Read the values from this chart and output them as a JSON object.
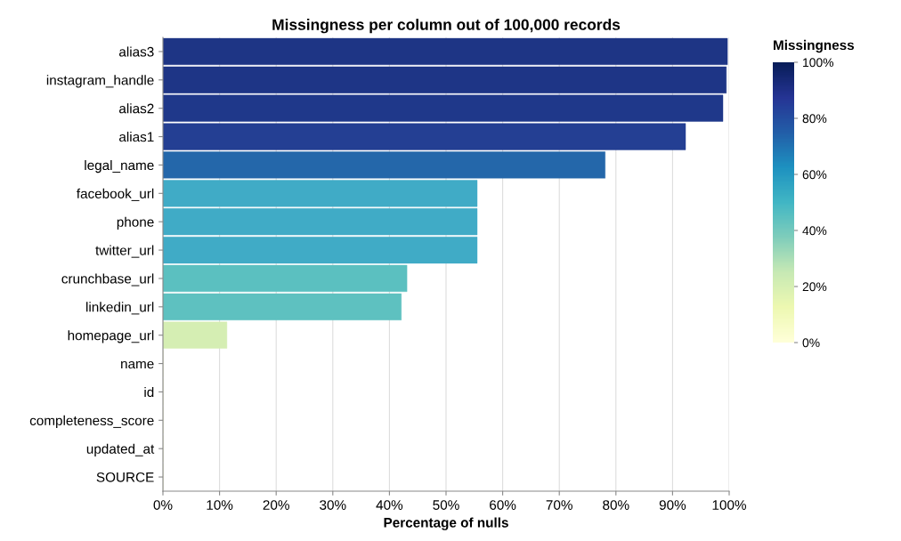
{
  "chart_data": {
    "type": "bar",
    "orientation": "horizontal",
    "title": "Missingness per column out of 100,000 records",
    "xlabel": "Percentage of nulls",
    "clabel": "Missingness",
    "categories": [
      "alias3",
      "instagram_handle",
      "alias2",
      "alias1",
      "legal_name",
      "facebook_url",
      "phone",
      "twitter_url",
      "crunchbase_url",
      "linkedin_url",
      "homepage_url",
      "name",
      "id",
      "completeness_score",
      "updated_at",
      "SOURCE"
    ],
    "values": [
      99.7,
      99.5,
      98.9,
      92.3,
      78.1,
      55.5,
      55.5,
      55.5,
      43.1,
      42.1,
      11.3,
      0,
      0,
      0,
      0,
      0
    ],
    "colors": [
      "#1e3585",
      "#1e3586",
      "#1f388a",
      "#243f93",
      "#2467aa",
      "#40abc6",
      "#40abc6",
      "#40abc6",
      "#5bc0c0",
      "#5ec1c0",
      "#d5eeb3",
      "#edf8b1",
      "#edf8b1",
      "#edf8b1",
      "#edf8b1",
      "#edf8b1"
    ],
    "xlim": [
      0,
      100
    ],
    "xticks": [
      {
        "value": 0,
        "label": "0%"
      },
      {
        "value": 10,
        "label": "10%"
      },
      {
        "value": 20,
        "label": "20%"
      },
      {
        "value": 30,
        "label": "30%"
      },
      {
        "value": 40,
        "label": "40%"
      },
      {
        "value": 50,
        "label": "50%"
      },
      {
        "value": 60,
        "label": "60%"
      },
      {
        "value": 70,
        "label": "70%"
      },
      {
        "value": 80,
        "label": "80%"
      },
      {
        "value": 90,
        "label": "90%"
      },
      {
        "value": 100,
        "label": "100%"
      }
    ],
    "clim": [
      0,
      100
    ],
    "cticks": [
      {
        "value": 0,
        "label": "0%"
      },
      {
        "value": 20,
        "label": "20%"
      },
      {
        "value": 40,
        "label": "40%"
      },
      {
        "value": 60,
        "label": "60%"
      },
      {
        "value": 80,
        "label": "80%"
      },
      {
        "value": 100,
        "label": "100%"
      }
    ],
    "grid": "x"
  }
}
